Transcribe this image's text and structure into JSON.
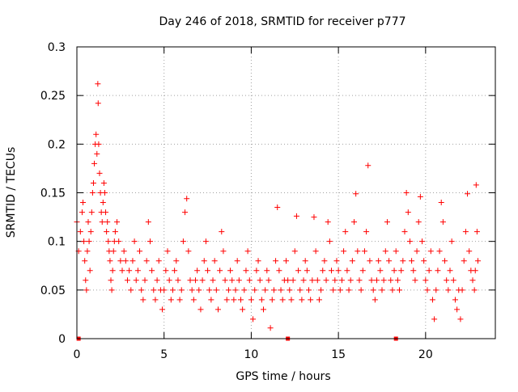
{
  "chart_data": {
    "type": "scatter",
    "title": "Day 246 of 2018, SRMTID for receiver p777",
    "xlabel": "GPS time / hours",
    "ylabel": "SRMTID / TECUs",
    "xlim": [
      0,
      24
    ],
    "ylim": [
      0,
      0.3
    ],
    "xticks": [
      0,
      5,
      10,
      15,
      20
    ],
    "xtick_labels": [
      "0",
      "5",
      "10",
      "15",
      "20"
    ],
    "yticks": [
      0,
      0.05,
      0.1,
      0.15,
      0.2,
      0.25,
      0.3
    ],
    "ytick_labels": [
      "0",
      "0.05",
      "0.1",
      "0.15",
      "0.2",
      "0.25",
      "0.3"
    ],
    "grid": true,
    "marker": "plus",
    "color": "#ff0000",
    "series": [
      {
        "name": "SRMTID",
        "points": [
          [
            0.0,
            0.12
          ],
          [
            0.1,
            0.09
          ],
          [
            0.2,
            0.11
          ],
          [
            0.3,
            0.13
          ],
          [
            0.35,
            0.14
          ],
          [
            0.4,
            0.1
          ],
          [
            0.45,
            0.08
          ],
          [
            0.5,
            0.06
          ],
          [
            0.55,
            0.05
          ],
          [
            0.6,
            0.09
          ],
          [
            0.65,
            0.12
          ],
          [
            0.7,
            0.1
          ],
          [
            0.75,
            0.07
          ],
          [
            0.8,
            0.11
          ],
          [
            0.85,
            0.13
          ],
          [
            0.9,
            0.15
          ],
          [
            0.95,
            0.16
          ],
          [
            1.0,
            0.18
          ],
          [
            1.05,
            0.2
          ],
          [
            1.1,
            0.21
          ],
          [
            1.15,
            0.19
          ],
          [
            1.2,
            0.262
          ],
          [
            1.22,
            0.242
          ],
          [
            1.25,
            0.2
          ],
          [
            1.3,
            0.17
          ],
          [
            1.35,
            0.15
          ],
          [
            1.4,
            0.13
          ],
          [
            1.45,
            0.12
          ],
          [
            1.5,
            0.14
          ],
          [
            1.55,
            0.16
          ],
          [
            1.6,
            0.15
          ],
          [
            1.65,
            0.13
          ],
          [
            1.7,
            0.11
          ],
          [
            1.75,
            0.12
          ],
          [
            1.8,
            0.1
          ],
          [
            1.85,
            0.09
          ],
          [
            1.9,
            0.08
          ],
          [
            1.95,
            0.06
          ],
          [
            2.0,
            0.05
          ],
          [
            2.05,
            0.07
          ],
          [
            2.1,
            0.09
          ],
          [
            2.15,
            0.1
          ],
          [
            2.2,
            0.11
          ],
          [
            2.3,
            0.12
          ],
          [
            2.4,
            0.1
          ],
          [
            2.5,
            0.08
          ],
          [
            2.6,
            0.07
          ],
          [
            2.7,
            0.09
          ],
          [
            2.8,
            0.08
          ],
          [
            2.9,
            0.06
          ],
          [
            3.0,
            0.07
          ],
          [
            3.1,
            0.05
          ],
          [
            3.2,
            0.08
          ],
          [
            3.3,
            0.1
          ],
          [
            3.4,
            0.06
          ],
          [
            3.5,
            0.07
          ],
          [
            3.6,
            0.09
          ],
          [
            3.7,
            0.05
          ],
          [
            3.8,
            0.04
          ],
          [
            3.9,
            0.06
          ],
          [
            4.0,
            0.08
          ],
          [
            4.1,
            0.12
          ],
          [
            4.2,
            0.1
          ],
          [
            4.3,
            0.07
          ],
          [
            4.4,
            0.05
          ],
          [
            4.5,
            0.04
          ],
          [
            4.6,
            0.06
          ],
          [
            4.7,
            0.08
          ],
          [
            4.8,
            0.05
          ],
          [
            4.9,
            0.03
          ],
          [
            5.0,
            0.05
          ],
          [
            5.1,
            0.07
          ],
          [
            5.2,
            0.09
          ],
          [
            5.3,
            0.06
          ],
          [
            5.4,
            0.04
          ],
          [
            5.5,
            0.05
          ],
          [
            5.6,
            0.07
          ],
          [
            5.7,
            0.08
          ],
          [
            5.8,
            0.06
          ],
          [
            5.9,
            0.04
          ],
          [
            6.0,
            0.05
          ],
          [
            6.1,
            0.1
          ],
          [
            6.2,
            0.13
          ],
          [
            6.3,
            0.144
          ],
          [
            6.4,
            0.09
          ],
          [
            6.5,
            0.06
          ],
          [
            6.6,
            0.05
          ],
          [
            6.7,
            0.04
          ],
          [
            6.8,
            0.06
          ],
          [
            6.9,
            0.07
          ],
          [
            7.0,
            0.05
          ],
          [
            7.1,
            0.03
          ],
          [
            7.2,
            0.06
          ],
          [
            7.3,
            0.08
          ],
          [
            7.4,
            0.1
          ],
          [
            7.5,
            0.07
          ],
          [
            7.6,
            0.05
          ],
          [
            7.7,
            0.04
          ],
          [
            7.8,
            0.06
          ],
          [
            7.9,
            0.08
          ],
          [
            8.0,
            0.05
          ],
          [
            8.1,
            0.03
          ],
          [
            8.2,
            0.07
          ],
          [
            8.3,
            0.11
          ],
          [
            8.4,
            0.09
          ],
          [
            8.5,
            0.06
          ],
          [
            8.6,
            0.04
          ],
          [
            8.7,
            0.05
          ],
          [
            8.8,
            0.07
          ],
          [
            8.9,
            0.06
          ],
          [
            9.0,
            0.04
          ],
          [
            9.1,
            0.05
          ],
          [
            9.2,
            0.08
          ],
          [
            9.3,
            0.06
          ],
          [
            9.4,
            0.04
          ],
          [
            9.5,
            0.03
          ],
          [
            9.6,
            0.05
          ],
          [
            9.7,
            0.07
          ],
          [
            9.8,
            0.09
          ],
          [
            9.9,
            0.06
          ],
          [
            10.0,
            0.04
          ],
          [
            10.1,
            0.02
          ],
          [
            10.2,
            0.05
          ],
          [
            10.3,
            0.07
          ],
          [
            10.4,
            0.08
          ],
          [
            10.5,
            0.06
          ],
          [
            10.6,
            0.04
          ],
          [
            10.7,
            0.03
          ],
          [
            10.8,
            0.05
          ],
          [
            10.9,
            0.07
          ],
          [
            11.0,
            0.06
          ],
          [
            11.1,
            0.011
          ],
          [
            11.2,
            0.04
          ],
          [
            11.3,
            0.05
          ],
          [
            11.4,
            0.08
          ],
          [
            11.5,
            0.135
          ],
          [
            11.6,
            0.07
          ],
          [
            11.7,
            0.05
          ],
          [
            11.8,
            0.04
          ],
          [
            11.9,
            0.06
          ],
          [
            12.0,
            0.08
          ],
          [
            12.1,
            0.06
          ],
          [
            12.2,
            0.05
          ],
          [
            12.3,
            0.04
          ],
          [
            12.4,
            0.06
          ],
          [
            12.5,
            0.09
          ],
          [
            12.6,
            0.126
          ],
          [
            12.7,
            0.07
          ],
          [
            12.8,
            0.05
          ],
          [
            12.9,
            0.04
          ],
          [
            13.0,
            0.06
          ],
          [
            13.1,
            0.08
          ],
          [
            13.2,
            0.07
          ],
          [
            13.3,
            0.05
          ],
          [
            13.4,
            0.04
          ],
          [
            13.5,
            0.06
          ],
          [
            13.6,
            0.125
          ],
          [
            13.7,
            0.09
          ],
          [
            13.8,
            0.06
          ],
          [
            13.9,
            0.04
          ],
          [
            14.0,
            0.05
          ],
          [
            14.1,
            0.07
          ],
          [
            14.2,
            0.08
          ],
          [
            14.3,
            0.06
          ],
          [
            14.4,
            0.12
          ],
          [
            14.5,
            0.1
          ],
          [
            14.6,
            0.07
          ],
          [
            14.7,
            0.05
          ],
          [
            14.8,
            0.06
          ],
          [
            14.9,
            0.08
          ],
          [
            15.0,
            0.07
          ],
          [
            15.1,
            0.05
          ],
          [
            15.2,
            0.06
          ],
          [
            15.3,
            0.09
          ],
          [
            15.4,
            0.11
          ],
          [
            15.5,
            0.07
          ],
          [
            15.6,
            0.05
          ],
          [
            15.7,
            0.06
          ],
          [
            15.8,
            0.08
          ],
          [
            15.9,
            0.12
          ],
          [
            16.0,
            0.149
          ],
          [
            16.1,
            0.09
          ],
          [
            16.2,
            0.06
          ],
          [
            16.3,
            0.05
          ],
          [
            16.4,
            0.07
          ],
          [
            16.5,
            0.09
          ],
          [
            16.6,
            0.11
          ],
          [
            16.7,
            0.178
          ],
          [
            16.8,
            0.08
          ],
          [
            16.9,
            0.06
          ],
          [
            17.0,
            0.05
          ],
          [
            17.1,
            0.04
          ],
          [
            17.2,
            0.06
          ],
          [
            17.3,
            0.08
          ],
          [
            17.4,
            0.07
          ],
          [
            17.5,
            0.05
          ],
          [
            17.6,
            0.06
          ],
          [
            17.7,
            0.09
          ],
          [
            17.8,
            0.12
          ],
          [
            17.9,
            0.08
          ],
          [
            18.0,
            0.06
          ],
          [
            18.1,
            0.05
          ],
          [
            18.2,
            0.07
          ],
          [
            18.3,
            0.09
          ],
          [
            18.4,
            0.06
          ],
          [
            18.5,
            0.05
          ],
          [
            18.6,
            0.07
          ],
          [
            18.7,
            0.08
          ],
          [
            18.8,
            0.11
          ],
          [
            18.9,
            0.15
          ],
          [
            19.0,
            0.13
          ],
          [
            19.1,
            0.1
          ],
          [
            19.2,
            0.08
          ],
          [
            19.3,
            0.07
          ],
          [
            19.4,
            0.06
          ],
          [
            19.5,
            0.09
          ],
          [
            19.6,
            0.12
          ],
          [
            19.7,
            0.146
          ],
          [
            19.8,
            0.1
          ],
          [
            19.9,
            0.08
          ],
          [
            20.0,
            0.06
          ],
          [
            20.1,
            0.05
          ],
          [
            20.2,
            0.07
          ],
          [
            20.3,
            0.09
          ],
          [
            20.4,
            0.04
          ],
          [
            20.5,
            0.02
          ],
          [
            20.6,
            0.05
          ],
          [
            20.7,
            0.07
          ],
          [
            20.8,
            0.09
          ],
          [
            20.9,
            0.14
          ],
          [
            21.0,
            0.12
          ],
          [
            21.1,
            0.08
          ],
          [
            21.2,
            0.06
          ],
          [
            21.3,
            0.05
          ],
          [
            21.4,
            0.07
          ],
          [
            21.5,
            0.1
          ],
          [
            21.6,
            0.06
          ],
          [
            21.7,
            0.04
          ],
          [
            21.8,
            0.03
          ],
          [
            21.9,
            0.05
          ],
          [
            22.0,
            0.02
          ],
          [
            22.1,
            0.05
          ],
          [
            22.2,
            0.08
          ],
          [
            22.3,
            0.11
          ],
          [
            22.4,
            0.149
          ],
          [
            22.5,
            0.09
          ],
          [
            22.6,
            0.07
          ],
          [
            22.7,
            0.06
          ],
          [
            22.8,
            0.05
          ],
          [
            22.9,
            0.158
          ],
          [
            23.0,
            0.08
          ],
          [
            22.95,
            0.11
          ],
          [
            22.85,
            0.07
          ]
        ]
      }
    ],
    "zero_markers": [
      0.1,
      12.1,
      18.3
    ]
  }
}
